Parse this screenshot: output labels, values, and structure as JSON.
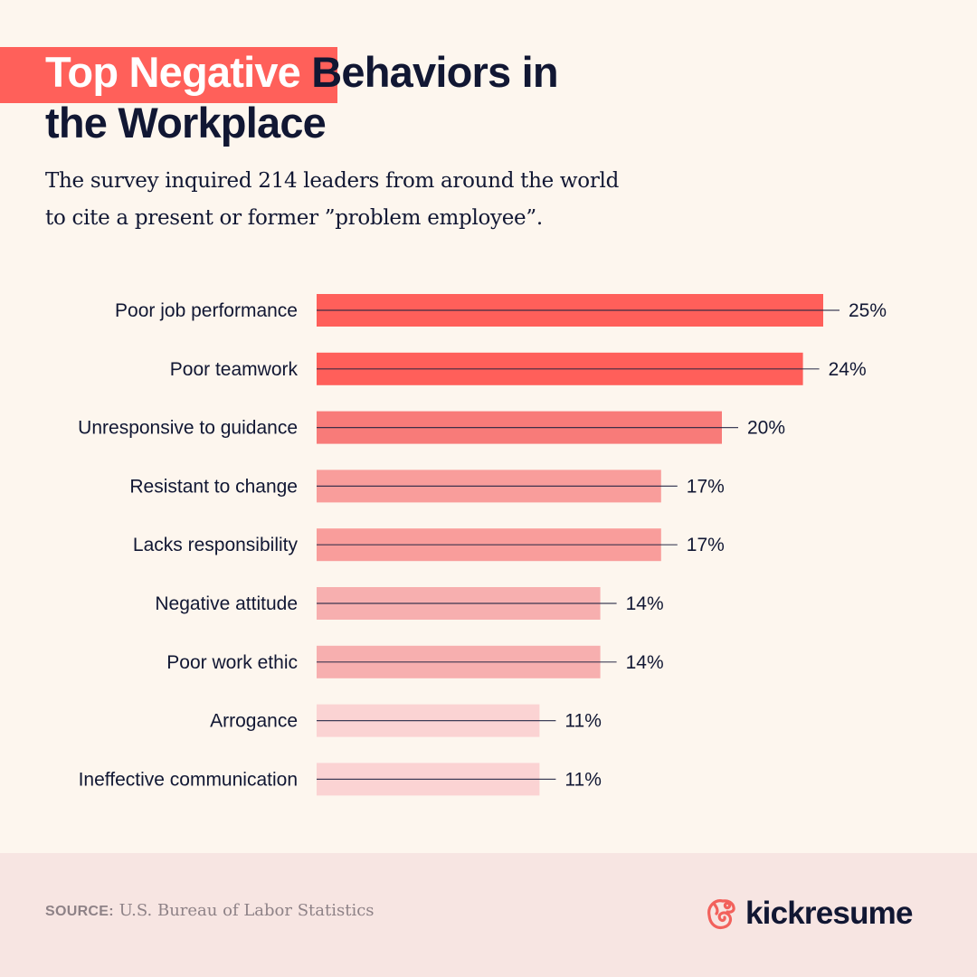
{
  "header": {
    "title_highlight": "Top Negative",
    "title_rest_line1": " Behaviors in",
    "title_line2": "the Workplace",
    "subtitle_line1": "The survey inquired 214 leaders from around the world",
    "subtitle_line2": "to cite a present or former ”problem employee”."
  },
  "colors": {
    "background": "#FDF6EE",
    "accent": "#FF605A",
    "text": "#111733",
    "footer_bg": "#F7E5E2"
  },
  "chart_data": {
    "type": "bar",
    "orientation": "horizontal",
    "title": "Top Negative Behaviors in the Workplace",
    "xlabel": "",
    "ylabel": "",
    "xlim": [
      0,
      25
    ],
    "grid": false,
    "categories": [
      "Poor job performance",
      "Poor teamwork",
      "Unresponsive to guidance",
      "Resistant to change",
      "Lacks responsibility",
      "Negative attitude",
      "Poor work ethic",
      "Arrogance",
      "Ineffective communication"
    ],
    "values": [
      25,
      24,
      20,
      17,
      17,
      14,
      14,
      11,
      11
    ],
    "value_labels": [
      "25%",
      "24%",
      "20%",
      "17%",
      "17%",
      "14%",
      "14%",
      "11%",
      "11%"
    ],
    "bar_colors": [
      "#FF5F5A",
      "#FF5F5A",
      "#F87B79",
      "#F99D9B",
      "#F99D9B",
      "#F7AFAF",
      "#F7AFAF",
      "#FBD3D3",
      "#FBD3D3"
    ],
    "unit": "%"
  },
  "footer": {
    "source_label": "SOURCE:",
    "source_text": " U.S. Bureau of Labor Statistics",
    "brand": "kickresume",
    "brand_icon": "chameleon-logo-icon"
  }
}
